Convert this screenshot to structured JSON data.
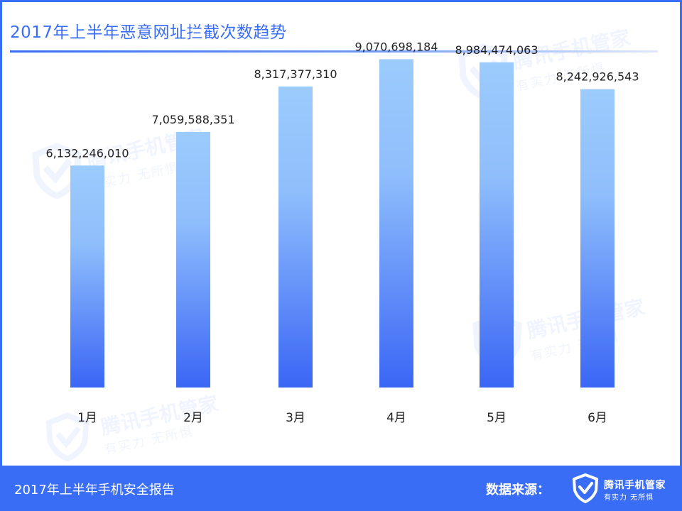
{
  "header": {
    "title": "2017年上半年恶意网址拦截次数趋势"
  },
  "footer": {
    "report_title": "2017年上半年手机安全报告",
    "source_label": "数据来源：",
    "brand_name": "腾讯手机管家",
    "brand_slogan": "有实力 无所惧"
  },
  "watermark": {
    "brand_name": "腾讯手机管家",
    "brand_slogan": "有实力 无所惧"
  },
  "colors": {
    "accent": "#3a6df5",
    "bar_top": "#9ccbfd",
    "bar_bottom": "#3a66f5"
  },
  "chart_data": {
    "type": "bar",
    "title": "2017年上半年恶意网址拦截次数趋势",
    "categories": [
      "1月",
      "2月",
      "3月",
      "4月",
      "5月",
      "6月"
    ],
    "values": [
      6132246010,
      7059588351,
      8317377310,
      9070698184,
      8984474063,
      8242926543
    ],
    "value_labels": [
      "6,132,246,010",
      "7,059,588,351",
      "8,317,377,310",
      "9,070,698,184",
      "8,984,474,063",
      "8,242,926,543"
    ],
    "ylim": [
      0,
      10000000000
    ],
    "grid": false,
    "legend": "none"
  }
}
